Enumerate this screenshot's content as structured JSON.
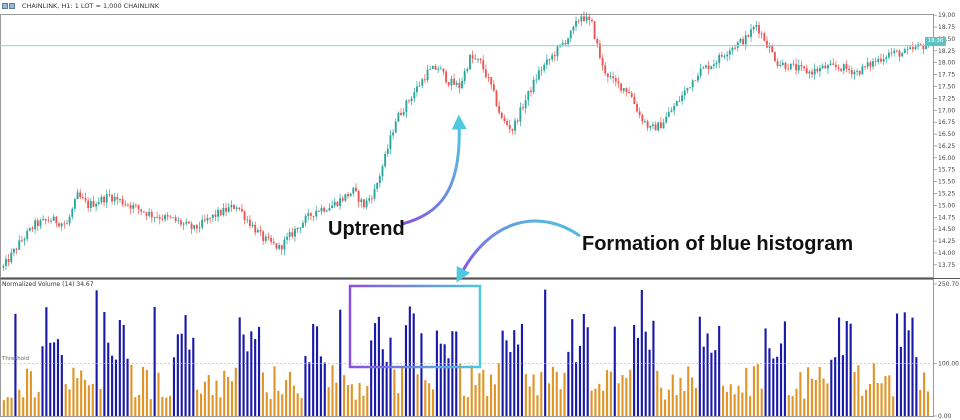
{
  "header": {
    "symbol_title": "CHAINLINK, H1:  1 LOT = 1,000 CHAINLINK",
    "indicator_label": "Normalized Volume (14) 34.67",
    "threshold_label": "Threshold"
  },
  "annotations": {
    "uptrend": "Uptrend",
    "blue_histogram": "Formation of blue histogram"
  },
  "price_panel": {
    "current_price_label": "18.36",
    "y_ticks": [
      "19.00",
      "18.75",
      "18.50",
      "18.25",
      "18.00",
      "17.75",
      "17.50",
      "17.25",
      "17.00",
      "16.75",
      "16.50",
      "16.25",
      "16.00",
      "15.75",
      "15.50",
      "15.25",
      "15.00",
      "14.75",
      "14.50",
      "14.25",
      "14.00",
      "13.75"
    ],
    "y_min": 13.6,
    "y_max": 19.15,
    "current_price": 18.36,
    "anchors": [
      [
        0,
        13.7
      ],
      [
        6,
        14.2
      ],
      [
        12,
        14.6
      ],
      [
        18,
        14.7
      ],
      [
        24,
        14.6
      ],
      [
        28,
        15.2
      ],
      [
        32,
        15.0
      ],
      [
        40,
        15.2
      ],
      [
        48,
        15.0
      ],
      [
        56,
        14.8
      ],
      [
        64,
        14.7
      ],
      [
        72,
        14.5
      ],
      [
        80,
        14.8
      ],
      [
        88,
        15.0
      ],
      [
        92,
        14.7
      ],
      [
        98,
        14.3
      ],
      [
        104,
        14.1
      ],
      [
        112,
        14.6
      ],
      [
        118,
        14.9
      ],
      [
        124,
        15.0
      ],
      [
        132,
        15.3
      ],
      [
        136,
        15.0
      ],
      [
        140,
        15.3
      ],
      [
        144,
        16.0
      ],
      [
        148,
        16.8
      ],
      [
        154,
        17.3
      ],
      [
        160,
        17.8
      ],
      [
        164,
        17.9
      ],
      [
        168,
        17.6
      ],
      [
        172,
        17.5
      ],
      [
        176,
        18.1
      ],
      [
        180,
        18.0
      ],
      [
        184,
        17.5
      ],
      [
        188,
        16.8
      ],
      [
        192,
        16.6
      ],
      [
        196,
        17.1
      ],
      [
        202,
        17.8
      ],
      [
        208,
        18.2
      ],
      [
        214,
        18.6
      ],
      [
        218,
        19.0
      ],
      [
        222,
        18.8
      ],
      [
        226,
        17.9
      ],
      [
        230,
        17.6
      ],
      [
        236,
        17.4
      ],
      [
        240,
        16.9
      ],
      [
        244,
        16.6
      ],
      [
        248,
        16.7
      ],
      [
        252,
        17.0
      ],
      [
        256,
        17.3
      ],
      [
        262,
        17.8
      ],
      [
        268,
        18.0
      ],
      [
        274,
        18.3
      ],
      [
        280,
        18.5
      ],
      [
        284,
        18.8
      ],
      [
        288,
        18.4
      ],
      [
        292,
        18.0
      ],
      [
        298,
        17.9
      ],
      [
        304,
        17.8
      ],
      [
        310,
        17.9
      ],
      [
        316,
        17.9
      ],
      [
        322,
        17.8
      ],
      [
        328,
        18.0
      ],
      [
        334,
        18.2
      ],
      [
        340,
        18.2
      ],
      [
        344,
        18.3
      ],
      [
        349,
        18.4
      ]
    ],
    "candle_count": 350
  },
  "volume_panel": {
    "y_ticks": [
      "250.70",
      "100.00",
      "0.00"
    ],
    "y_max": 250.7,
    "threshold": 100,
    "bar_count": 240,
    "blue_color": "#1a1aa8",
    "orange_color": "#e0952a"
  },
  "colors": {
    "up_candle": "#26a69a",
    "down_candle": "#ef5350",
    "price_line": "#7fd8d8",
    "box_left": "#8a4fe0",
    "box_right": "#4fc8e0",
    "arrow_start": "#8a4fe0",
    "arrow_end": "#4fc8e0"
  }
}
